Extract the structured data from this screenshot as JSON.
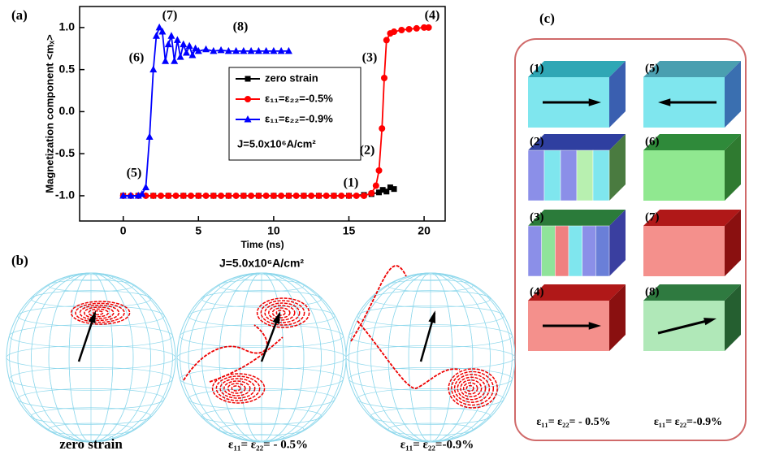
{
  "panel_labels": [
    "(a)",
    "(b)",
    "(c)"
  ],
  "chart_data": {
    "type": "line",
    "x_label": "Time (ns)",
    "y_label": "Magnetization component <mₓ>",
    "xlim": [
      -2.9,
      21.4
    ],
    "ylim": [
      -1.3,
      1.25
    ],
    "xticks": [
      0,
      5,
      10,
      15,
      20
    ],
    "yticks": [
      {
        "value": -1,
        "label": "-1.0"
      },
      -0.5,
      {
        "value": 0,
        "label": "0.0"
      },
      0.5,
      {
        "value": 1,
        "label": "1.0"
      }
    ],
    "legend": "center right",
    "legend_note": "J=5.0x10⁶A/cm²",
    "annotations": [
      "(1)",
      "(2)",
      "(3)",
      "(4)",
      "(5)",
      "(6)",
      "(7)",
      "(8)"
    ],
    "series": [
      {
        "name": "zero strain",
        "color": "#000000",
        "marker": "square",
        "x": [
          0,
          1,
          2,
          3,
          4,
          5,
          6,
          7,
          8,
          9,
          10,
          11,
          12,
          13,
          14,
          15,
          16,
          16.5,
          17,
          17.25,
          17.5,
          17.75,
          18
        ],
        "values": [
          -1,
          -1,
          -1,
          -1,
          -1,
          -1,
          -1,
          -1,
          -1,
          -1,
          -1,
          -1,
          -1,
          -1,
          -1,
          -1,
          -0.99,
          -0.98,
          -0.96,
          -0.93,
          -0.95,
          -0.9,
          -0.92
        ]
      },
      {
        "name": "ε₁₁=ε₂₂=-0.5%",
        "color": "#ff0000",
        "marker": "circle",
        "x": [
          0,
          0.5,
          1,
          1.5,
          2,
          2.5,
          3,
          3.5,
          4,
          4.5,
          5,
          5.5,
          6,
          6.5,
          7,
          7.5,
          8,
          8.5,
          9,
          9.5,
          10,
          10.5,
          11,
          11.5,
          12,
          12.5,
          13,
          13.5,
          14,
          14.5,
          15,
          15.5,
          16,
          16.5,
          16.8,
          17,
          17.2,
          17.35,
          17.5,
          17.75,
          18,
          18.5,
          19,
          19.5,
          20,
          20.3
        ],
        "values": [
          -1,
          -1,
          -1,
          -1,
          -1,
          -1,
          -1,
          -1,
          -1,
          -1,
          -1,
          -1,
          -1,
          -1,
          -1,
          -1,
          -1,
          -1,
          -1,
          -1,
          -1,
          -1,
          -1,
          -1,
          -1,
          -1,
          -1,
          -1,
          -1,
          -1,
          -1,
          -1,
          -1,
          -0.97,
          -0.88,
          -0.7,
          -0.2,
          0.4,
          0.85,
          0.93,
          0.95,
          0.97,
          0.98,
          0.99,
          1.0,
          1.0
        ]
      },
      {
        "name": "ε₁₁=ε₂₂=-0.9%",
        "color": "#0000ff",
        "marker": "triangle",
        "x": [
          0,
          0.5,
          1,
          1.25,
          1.5,
          1.75,
          2,
          2.2,
          2.4,
          2.6,
          2.8,
          3,
          3.2,
          3.4,
          3.6,
          3.8,
          4,
          4.2,
          4.4,
          4.6,
          4.8,
          5,
          5.5,
          6,
          6.5,
          7,
          7.5,
          8,
          8.5,
          9,
          9.5,
          10,
          10.5,
          11
        ],
        "values": [
          -1,
          -1,
          -1,
          -0.98,
          -0.9,
          -0.3,
          0.5,
          0.9,
          1.0,
          0.95,
          0.6,
          0.8,
          0.9,
          0.6,
          0.85,
          0.65,
          0.8,
          0.7,
          0.78,
          0.67,
          0.75,
          0.72,
          0.74,
          0.72,
          0.73,
          0.72,
          0.72,
          0.72,
          0.72,
          0.72,
          0.72,
          0.72,
          0.72,
          0.72
        ]
      }
    ]
  },
  "spheres": {
    "title": "J=5.0x10⁶A/cm²",
    "captions": [
      "zero strain",
      "ε₁₁= ε₂₂= - 0.5%",
      "ε₁₁= ε₂₂=-0.9%"
    ]
  },
  "cubes": {
    "labels": [
      "(1)",
      "(2)",
      "(3)",
      "(4)",
      "(5)",
      "(6)",
      "(7)",
      "(8)"
    ],
    "captions": [
      "ε₁₁= ε₂₂= - 0.5%",
      "ε₁₁= ε₂₂=-0.9%"
    ]
  }
}
